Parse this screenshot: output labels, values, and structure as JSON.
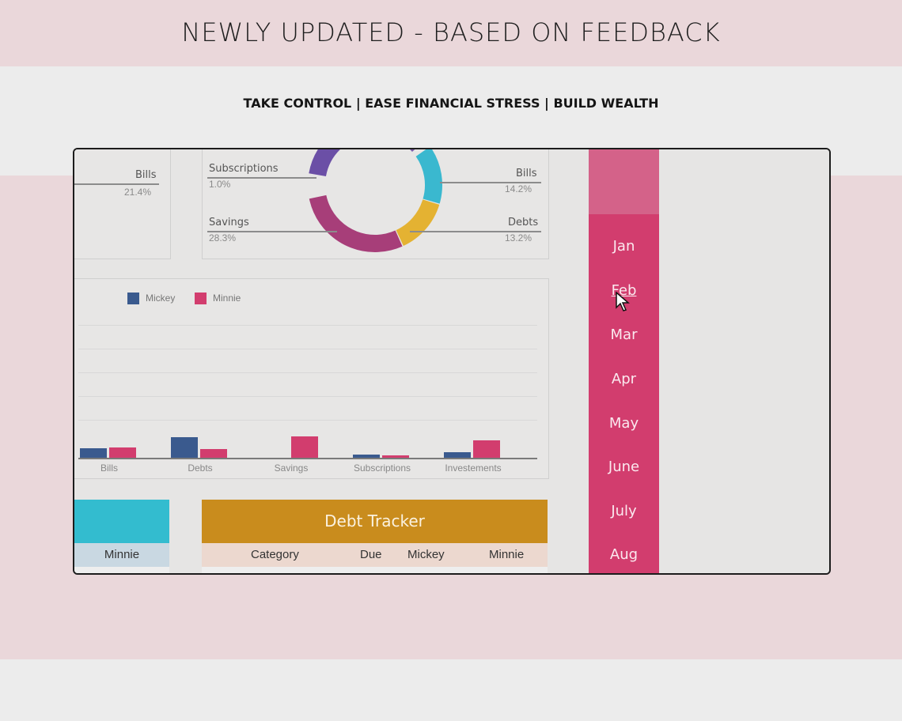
{
  "banner": {
    "headline": "NEWLY UPDATED - BASED ON FEEDBACK",
    "tagline": "TAKE CONTROL | EASE FINANCIAL STRESS | BUILD WEALTH"
  },
  "summary_left": {
    "label": "Bills",
    "pct": "21.4%"
  },
  "donut": {
    "labels": [
      {
        "name": "Subscriptions",
        "pct": "1.0%"
      },
      {
        "name": "Savings",
        "pct": "28.3%"
      },
      {
        "name": "Bills",
        "pct": "14.2%"
      },
      {
        "name": "Debts",
        "pct": "13.2%"
      }
    ]
  },
  "chart_data": {
    "type": "bar",
    "categories": [
      "Bills",
      "Debts",
      "Savings",
      "Subscriptions",
      "Investements"
    ],
    "series": [
      {
        "name": "Mickey",
        "values": [
          12,
          26,
          0,
          4,
          7
        ],
        "color": "#3a5a8e"
      },
      {
        "name": "Minnie",
        "values": [
          13,
          11,
          27,
          3,
          22
        ],
        "color": "#d23d6e"
      }
    ],
    "legend_placement": "top-left",
    "grid": true
  },
  "months": {
    "items": [
      "Jan",
      "Feb",
      "Mar",
      "Apr",
      "May",
      "June",
      "July",
      "Aug"
    ],
    "hovered": "Feb"
  },
  "left_table": {
    "column": "Minnie",
    "header_color": "#33bccf"
  },
  "debt_tracker": {
    "title": "Debt Tracker",
    "columns": [
      "Category",
      "Due",
      "Mickey",
      "Minnie"
    ],
    "header_color": "#c98c1d"
  }
}
